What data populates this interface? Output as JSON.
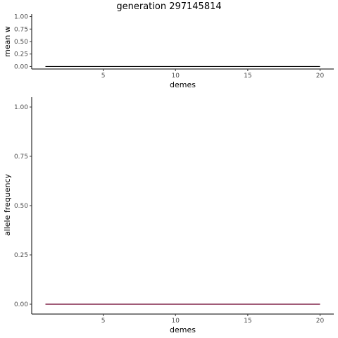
{
  "title": "generation 297145814",
  "chart_data": [
    {
      "type": "line",
      "xlabel": "demes",
      "ylabel": "mean w",
      "xlim": [
        0.05,
        20.95
      ],
      "ylim": [
        -0.05,
        1.05
      ],
      "xticks": [
        5,
        10,
        15,
        20
      ],
      "yticks": [
        0,
        0.25,
        0.5,
        0.75,
        1
      ],
      "ytick_labels": [
        "0.00",
        "0.25",
        "0.50",
        "0.75",
        "1.00"
      ],
      "grid": false,
      "series": [
        {
          "color": "#000000",
          "x": [
            1,
            2,
            3,
            4,
            5,
            6,
            7,
            8,
            9,
            10,
            11,
            12,
            13,
            14,
            15,
            16,
            17,
            18,
            19,
            20
          ],
          "y": [
            0,
            0,
            0,
            0,
            0,
            0,
            0,
            0,
            0,
            0,
            0,
            0,
            0,
            0,
            0,
            0,
            0,
            0,
            0,
            0
          ]
        }
      ]
    },
    {
      "type": "line",
      "xlabel": "demes",
      "ylabel": "allele frequency",
      "xlim": [
        0.05,
        20.95
      ],
      "ylim": [
        -0.05,
        1.05
      ],
      "xticks": [
        5,
        10,
        15,
        20
      ],
      "yticks": [
        0,
        0.25,
        0.5,
        0.75,
        1
      ],
      "ytick_labels": [
        "0.00",
        "0.25",
        "0.50",
        "0.75",
        "1.00"
      ],
      "grid": false,
      "series": [
        {
          "color": "#1f3b8a",
          "x": [
            1,
            2,
            3,
            4,
            5,
            6,
            7,
            8,
            9,
            10,
            11,
            12,
            13,
            14,
            15,
            16,
            17,
            18,
            19,
            20
          ],
          "y": [
            0,
            0,
            0,
            0,
            0,
            0,
            0,
            0,
            0,
            0,
            0,
            0,
            0,
            0,
            0,
            0,
            0,
            0,
            0,
            0
          ]
        },
        {
          "color": "#8b1a3a",
          "x": [
            1,
            2,
            3,
            4,
            5,
            6,
            7,
            8,
            9,
            10,
            11,
            12,
            13,
            14,
            15,
            16,
            17,
            18,
            19,
            20
          ],
          "y": [
            0,
            0,
            0,
            0,
            0,
            0,
            0,
            0,
            0,
            0,
            0,
            0,
            0,
            0,
            0,
            0,
            0,
            0,
            0,
            0
          ]
        }
      ]
    }
  ]
}
